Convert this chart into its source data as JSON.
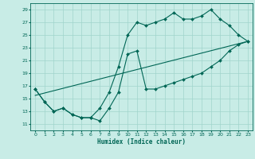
{
  "title": "",
  "xlabel": "Humidex (Indice chaleur)",
  "xlim": [
    -0.5,
    23.5
  ],
  "ylim": [
    10,
    30
  ],
  "yticks": [
    11,
    13,
    15,
    17,
    19,
    21,
    23,
    25,
    27,
    29
  ],
  "xticks": [
    0,
    1,
    2,
    3,
    4,
    5,
    6,
    7,
    8,
    9,
    10,
    11,
    12,
    13,
    14,
    15,
    16,
    17,
    18,
    19,
    20,
    21,
    22,
    23
  ],
  "bg_color": "#c8ece6",
  "grid_color": "#a0d4cc",
  "line_color": "#006655",
  "line1_x": [
    0,
    1,
    2,
    3,
    4,
    5,
    6,
    7,
    8,
    9,
    10,
    11,
    12,
    13,
    14,
    15,
    16,
    17,
    18,
    19,
    20,
    21,
    22,
    23
  ],
  "line1_y": [
    16.5,
    14.5,
    13.0,
    13.5,
    12.5,
    12.0,
    12.0,
    11.5,
    13.5,
    16.0,
    22.0,
    22.5,
    16.5,
    16.5,
    17.0,
    17.5,
    18.0,
    18.5,
    19.0,
    20.0,
    21.0,
    22.5,
    23.5,
    24.0
  ],
  "line2_x": [
    0,
    1,
    2,
    3,
    4,
    5,
    6,
    7,
    8,
    9,
    10,
    11,
    12,
    13,
    14,
    15,
    16,
    17,
    18,
    19,
    20,
    21,
    22,
    23
  ],
  "line2_y": [
    16.5,
    14.5,
    13.0,
    13.5,
    12.5,
    12.0,
    12.0,
    13.5,
    16.0,
    20.0,
    25.0,
    27.0,
    26.5,
    27.0,
    27.5,
    28.5,
    27.5,
    27.5,
    28.0,
    29.0,
    27.5,
    26.5,
    25.0,
    24.0
  ],
  "line3_x": [
    0,
    23
  ],
  "line3_y": [
    15.5,
    24.0
  ],
  "marker": "D",
  "markersize": 2.0,
  "linewidth": 0.8
}
